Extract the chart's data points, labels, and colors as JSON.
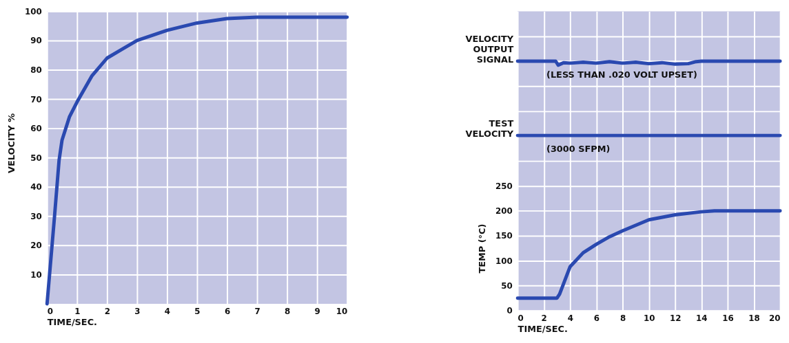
{
  "chart_data": [
    {
      "type": "line",
      "xlabel": "TIME/SEC.",
      "ylabel": "VELOCITY %",
      "xlim": [
        0,
        10
      ],
      "ylim": [
        0,
        100
      ],
      "xticks": [
        0,
        1,
        2,
        3,
        4,
        5,
        6,
        7,
        8,
        9,
        10
      ],
      "yticks": [
        10,
        20,
        30,
        40,
        50,
        60,
        70,
        80,
        90,
        100
      ],
      "grid": true,
      "marker": "none",
      "line_style": "solid",
      "x": [
        0,
        0.25,
        0.4,
        0.5,
        0.75,
        1,
        1.5,
        2,
        2.5,
        3,
        4,
        5,
        6,
        7,
        8,
        10
      ],
      "series": [
        {
          "color": "#2a49b0",
          "values": [
            0,
            30,
            49,
            56,
            64,
            69,
            78,
            84,
            87,
            90,
            93.5,
            96,
            97.5,
            98,
            98,
            98
          ]
        }
      ]
    },
    {
      "type": "line",
      "xlabel": "TIME/SEC.",
      "ylabel": "TEMP (°C)",
      "xlim": [
        0,
        20
      ],
      "ylim": [
        0,
        600
      ],
      "xticks": [
        0,
        2,
        4,
        6,
        8,
        10,
        12,
        14,
        16,
        18,
        20
      ],
      "yticks": [
        0,
        50,
        100,
        150,
        200,
        250,
        {
          "value": 300,
          "label": null
        },
        {
          "value": 350,
          "label": null
        },
        {
          "value": 400,
          "label": null
        },
        {
          "value": 450,
          "label": null
        },
        {
          "value": 500,
          "label": null
        },
        {
          "value": 550,
          "label": null
        }
      ],
      "grid": true,
      "marker": "none",
      "line_style": "solid",
      "series": [
        {
          "color": "#2a49b0",
          "x": [
            0,
            3,
            3.2,
            4,
            5,
            6,
            7,
            8,
            10,
            12,
            14,
            15,
            20
          ],
          "values": [
            25,
            25,
            33,
            88,
            116,
            133,
            148,
            160,
            182,
            192,
            198,
            200,
            200
          ]
        },
        {
          "name": "VELOCITY\nOUTPUT\nSIGNAL",
          "color": "#2a49b0",
          "x": [
            0,
            2.9,
            3.1,
            3.5,
            4,
            5,
            6,
            7,
            8,
            9,
            10,
            11,
            12,
            13,
            13.6,
            14,
            20
          ],
          "values": [
            500,
            500,
            492,
            497,
            496,
            498,
            496,
            499,
            496,
            498,
            495,
            497,
            494,
            495,
            499,
            500,
            500
          ]
        },
        {
          "name": "TEST\nVELOCITY",
          "color": "#2a49b0",
          "x": [
            0,
            20
          ],
          "values": [
            351,
            351
          ]
        }
      ],
      "annotations": [
        {
          "text": "(LESS THAN .020 VOLT UPSET)",
          "x": 2.2,
          "y": 500
        },
        {
          "text": "(3000 SFPM)",
          "x": 2.2,
          "y": 351
        }
      ]
    }
  ]
}
